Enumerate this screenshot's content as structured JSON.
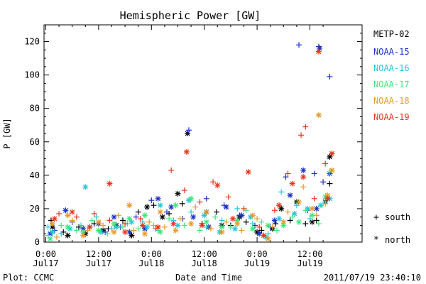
{
  "chart_data": {
    "type": "scatter",
    "title": "Hemispheric Power [GW]",
    "xlabel": "Date and Time",
    "ylabel": "P [GW]",
    "ylim": [
      0,
      130
    ],
    "xlim_hours": [
      0,
      65.5
    ],
    "x_tick_labels": [
      {
        "hour": 0,
        "time": "0:00",
        "date": "Jul17"
      },
      {
        "hour": 12,
        "time": "12:00",
        "date": "Jul17"
      },
      {
        "hour": 24,
        "time": "0:00",
        "date": "Jul18"
      },
      {
        "hour": 36,
        "time": "12:00",
        "date": "Jul18"
      },
      {
        "hour": 48,
        "time": "0:00",
        "date": "Jul19"
      },
      {
        "hour": 60,
        "time": "12:00",
        "date": "Jul19"
      }
    ],
    "y_ticks": [
      0,
      20,
      40,
      60,
      80,
      100,
      120
    ],
    "legend_title": "METP-02",
    "legend_placement": "right",
    "marker_legend": {
      "south_symbol": "+",
      "south_label": "south",
      "north_symbol": "*",
      "north_label": "north"
    },
    "series": [
      {
        "name": "METP-02",
        "color": "#000000",
        "south": [
          [
            1.2,
            13
          ],
          [
            4,
            6
          ],
          [
            7.5,
            9
          ],
          [
            11,
            11
          ],
          [
            14.2,
            8
          ],
          [
            17.5,
            13
          ],
          [
            21,
            18
          ],
          [
            24.5,
            22
          ],
          [
            28,
            17
          ],
          [
            31,
            23
          ],
          [
            35.5,
            11
          ],
          [
            38.8,
            18
          ],
          [
            42,
            10
          ],
          [
            45.5,
            12
          ],
          [
            49,
            7
          ],
          [
            52.2,
            11
          ],
          [
            55.5,
            13
          ],
          [
            59,
            11
          ],
          [
            61.5,
            13
          ],
          [
            64.5,
            35
          ]
        ],
        "north": [
          [
            1.5,
            9
          ],
          [
            5,
            4
          ],
          [
            9,
            5
          ],
          [
            13,
            7
          ],
          [
            16,
            10
          ],
          [
            19.5,
            4
          ],
          [
            23,
            21
          ],
          [
            26.5,
            15
          ],
          [
            30,
            29
          ],
          [
            32.2,
            65
          ],
          [
            36.5,
            18
          ],
          [
            40,
            10
          ],
          [
            44,
            15
          ],
          [
            48,
            6
          ],
          [
            51.5,
            8
          ],
          [
            53.5,
            20
          ],
          [
            57,
            24
          ],
          [
            60.5,
            12
          ],
          [
            63.5,
            24
          ],
          [
            64.5,
            51
          ]
        ]
      },
      {
        "name": "NOAA-15",
        "color": "#1a2fc8",
        "south": [
          [
            2,
            7
          ],
          [
            6,
            12
          ],
          [
            10,
            9
          ],
          [
            13.5,
            6
          ],
          [
            17,
            9
          ],
          [
            20.5,
            15
          ],
          [
            24,
            25
          ],
          [
            27.5,
            18
          ],
          [
            31,
            14
          ],
          [
            32.5,
            67
          ],
          [
            36.5,
            26
          ],
          [
            40.5,
            22
          ],
          [
            44,
            16
          ],
          [
            47.5,
            10
          ],
          [
            51,
            9
          ],
          [
            54.5,
            39
          ],
          [
            57.5,
            118
          ],
          [
            59.5,
            19
          ],
          [
            61,
            41
          ],
          [
            62,
            117
          ],
          [
            63,
            36
          ],
          [
            64.5,
            99
          ]
        ],
        "north": [
          [
            1,
            5
          ],
          [
            4.5,
            19
          ],
          [
            8.5,
            8
          ],
          [
            12,
            11
          ],
          [
            15.5,
            15
          ],
          [
            19,
            6
          ],
          [
            22.5,
            8
          ],
          [
            25.5,
            26
          ],
          [
            28.5,
            21
          ],
          [
            33.5,
            15
          ],
          [
            37,
            9
          ],
          [
            41,
            21
          ],
          [
            44.5,
            16
          ],
          [
            48.5,
            5
          ],
          [
            52,
            13
          ],
          [
            55.5,
            28
          ],
          [
            58.5,
            43
          ],
          [
            61.5,
            20
          ],
          [
            62.2,
            116
          ],
          [
            64.5,
            41
          ]
        ]
      },
      {
        "name": "NOAA-16",
        "color": "#1fc8d8",
        "south": [
          [
            0.5,
            9
          ],
          [
            3.5,
            5
          ],
          [
            8,
            10
          ],
          [
            11.5,
            15
          ],
          [
            15,
            8
          ],
          [
            18.5,
            11
          ],
          [
            22,
            12
          ],
          [
            25.5,
            7
          ],
          [
            29,
            13
          ],
          [
            33,
            18
          ],
          [
            36.5,
            9
          ],
          [
            40,
            13
          ],
          [
            43.5,
            20
          ],
          [
            47,
            11
          ],
          [
            50.5,
            5
          ],
          [
            53.5,
            30
          ],
          [
            57,
            22
          ],
          [
            60,
            14
          ],
          [
            63.5,
            24
          ]
        ],
        "north": [
          [
            1.5,
            6
          ],
          [
            5.5,
            8
          ],
          [
            9,
            33
          ],
          [
            12.5,
            6
          ],
          [
            16,
            9
          ],
          [
            19.5,
            12
          ],
          [
            23,
            9
          ],
          [
            26,
            22
          ],
          [
            30,
            10
          ],
          [
            32.5,
            25
          ],
          [
            36,
            16
          ],
          [
            39.5,
            6
          ],
          [
            43,
            8
          ],
          [
            46.5,
            15
          ],
          [
            50,
            3
          ],
          [
            53,
            14
          ],
          [
            56.5,
            17
          ],
          [
            59.5,
            20
          ],
          [
            62.5,
            22
          ],
          [
            64.5,
            26
          ]
        ]
      },
      {
        "name": "NOAA-17",
        "color": "#3ce87a",
        "south": [
          [
            0.5,
            4
          ],
          [
            3.5,
            10
          ],
          [
            7,
            7
          ],
          [
            10.5,
            13
          ],
          [
            14,
            5
          ],
          [
            17.5,
            9
          ],
          [
            21,
            8
          ],
          [
            24.5,
            10
          ],
          [
            28,
            14
          ],
          [
            31.5,
            10
          ],
          [
            35,
            7
          ],
          [
            38.5,
            15
          ],
          [
            42,
            9
          ],
          [
            45.5,
            19
          ],
          [
            49,
            12
          ],
          [
            52.5,
            7
          ],
          [
            56,
            15
          ],
          [
            59,
            19
          ],
          [
            62,
            11
          ],
          [
            64.5,
            42
          ]
        ],
        "north": [
          [
            1,
            2
          ],
          [
            5,
            9
          ],
          [
            8.5,
            6
          ],
          [
            12,
            7
          ],
          [
            15.5,
            11
          ],
          [
            19,
            14
          ],
          [
            22.5,
            16
          ],
          [
            26,
            6
          ],
          [
            29.5,
            22
          ],
          [
            33,
            26
          ],
          [
            36.5,
            12
          ],
          [
            40,
            9
          ],
          [
            43.5,
            13
          ],
          [
            47,
            8
          ],
          [
            50.5,
            10
          ],
          [
            54,
            10
          ],
          [
            57.5,
            12
          ],
          [
            60.5,
            16
          ],
          [
            63.5,
            27
          ],
          [
            65,
            43
          ]
        ]
      },
      {
        "name": "NOAA-18",
        "color": "#e89a24",
        "south": [
          [
            2.5,
            3
          ],
          [
            6,
            13
          ],
          [
            9.5,
            7
          ],
          [
            13,
            10
          ],
          [
            16.5,
            16
          ],
          [
            20,
            7
          ],
          [
            23.5,
            12
          ],
          [
            27,
            9
          ],
          [
            30.5,
            14
          ],
          [
            34,
            21
          ],
          [
            37.5,
            8
          ],
          [
            41,
            12
          ],
          [
            44.5,
            7
          ],
          [
            48,
            14
          ],
          [
            51.5,
            9
          ],
          [
            55,
            18
          ],
          [
            58.5,
            33
          ],
          [
            61.5,
            16
          ],
          [
            63.5,
            23
          ]
        ],
        "north": [
          [
            1.5,
            11
          ],
          [
            5,
            16
          ],
          [
            8.5,
            4
          ],
          [
            12,
            12
          ],
          [
            15.5,
            6
          ],
          [
            19,
            22
          ],
          [
            22.5,
            5
          ],
          [
            26,
            18
          ],
          [
            29.5,
            7
          ],
          [
            33,
            11
          ],
          [
            36.5,
            18
          ],
          [
            40,
            6
          ],
          [
            43.5,
            11
          ],
          [
            47,
            16
          ],
          [
            50.5,
            2
          ],
          [
            54,
            12
          ],
          [
            57.5,
            24
          ],
          [
            60.5,
            20
          ],
          [
            62,
            76
          ],
          [
            64,
            28
          ],
          [
            65,
            43
          ]
        ]
      },
      {
        "name": "NOAA-19",
        "color": "#e8341c",
        "south": [
          [
            3,
            17
          ],
          [
            7,
            15
          ],
          [
            11,
            17
          ],
          [
            14.5,
            13
          ],
          [
            18,
            11
          ],
          [
            21.5,
            14
          ],
          [
            25,
            8
          ],
          [
            28.5,
            43
          ],
          [
            31.5,
            31
          ],
          [
            35,
            24
          ],
          [
            38,
            36
          ],
          [
            41.5,
            27
          ],
          [
            45,
            20
          ],
          [
            48.5,
            9
          ],
          [
            52,
            19
          ],
          [
            55,
            41
          ],
          [
            58,
            64
          ],
          [
            59,
            69
          ],
          [
            61,
            26
          ],
          [
            63.5,
            47
          ],
          [
            65,
            53
          ]
        ],
        "north": [
          [
            2,
            14
          ],
          [
            6,
            18
          ],
          [
            10,
            9
          ],
          [
            14.5,
            35
          ],
          [
            18,
            6
          ],
          [
            22,
            10
          ],
          [
            25.5,
            9
          ],
          [
            29,
            11
          ],
          [
            32,
            54
          ],
          [
            35.5,
            10
          ],
          [
            39,
            34
          ],
          [
            42.5,
            14
          ],
          [
            46,
            42
          ],
          [
            49.5,
            4
          ],
          [
            53,
            22
          ],
          [
            56,
            35
          ],
          [
            58.5,
            39
          ],
          [
            62,
            114
          ],
          [
            64,
            26
          ],
          [
            65,
            53
          ]
        ]
      }
    ]
  },
  "footer": {
    "plot_label": "Plot: CCMC",
    "timestamp": "2011/07/19 23:40:10"
  }
}
